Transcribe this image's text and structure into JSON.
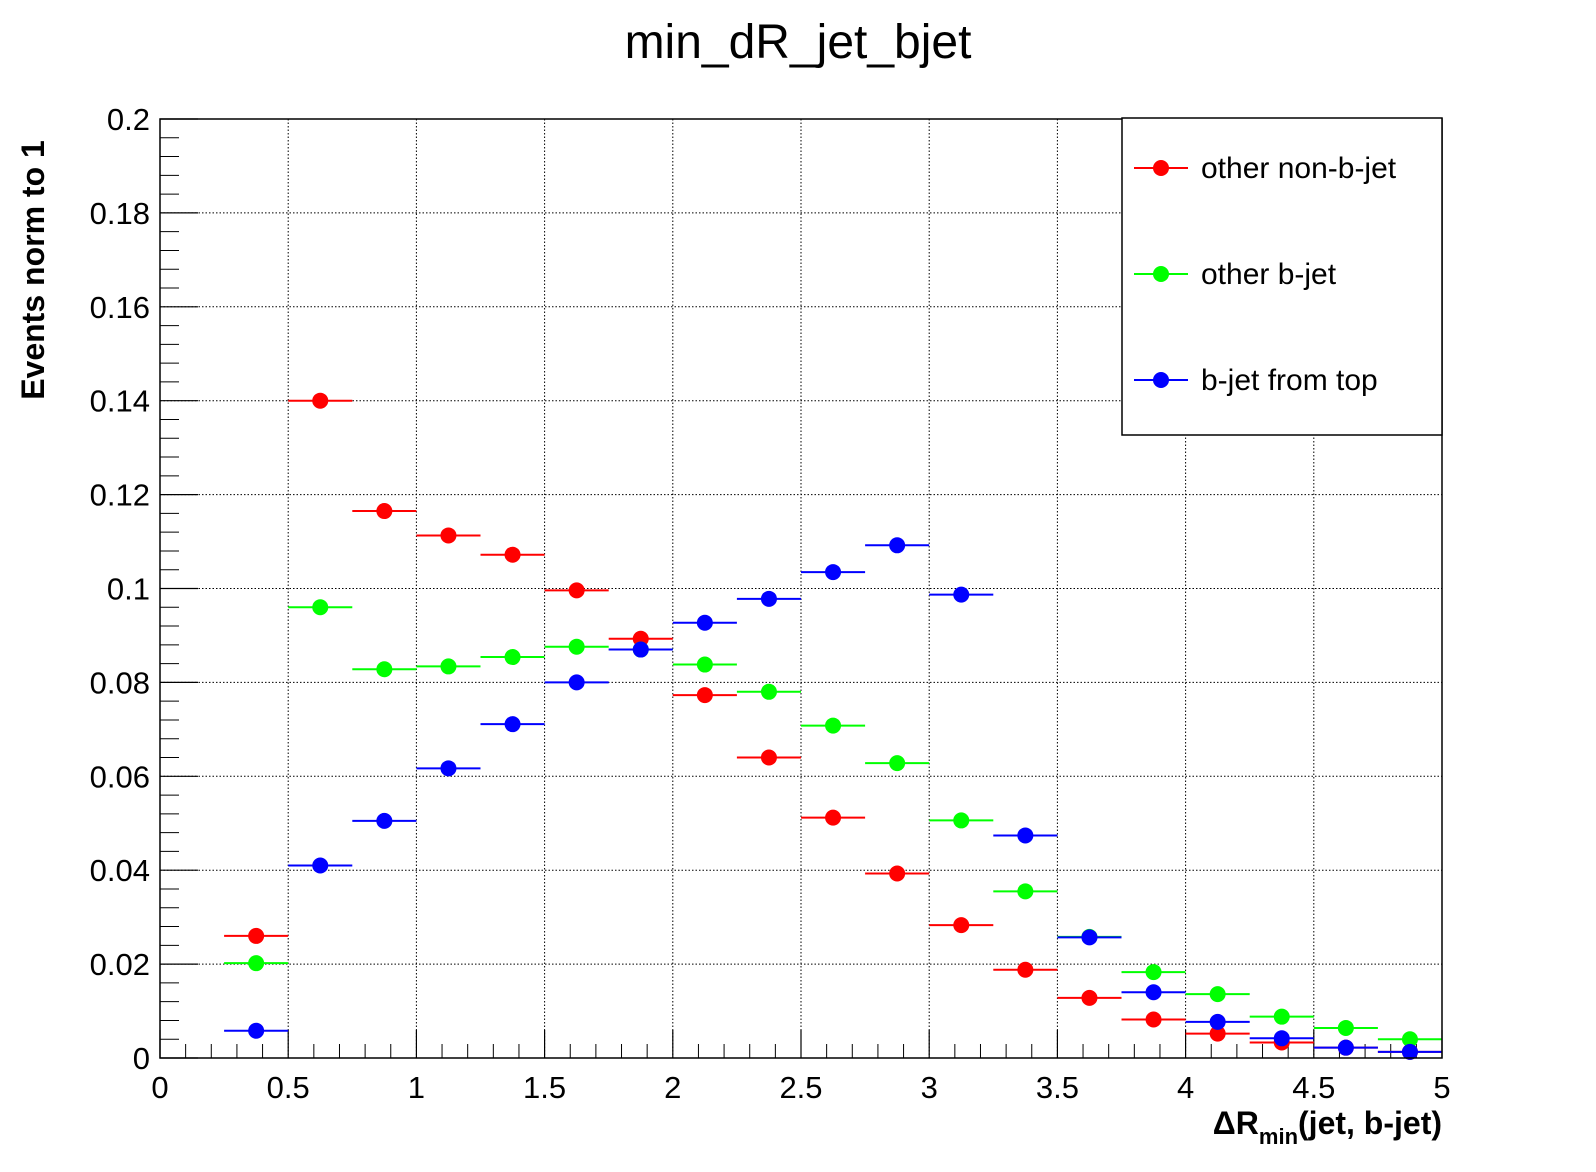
{
  "chart_data": {
    "type": "scatter",
    "title": "min_dR_jet_bjet",
    "xlabel": {
      "main": "ΔR",
      "sub": "min",
      "rest": "(jet, b-jet)"
    },
    "ylabel": "Events norm to 1",
    "xlim": [
      0,
      5
    ],
    "ylim": [
      0,
      0.2
    ],
    "x_major_ticks": [
      0,
      0.5,
      1,
      1.5,
      2,
      2.5,
      3,
      3.5,
      4,
      4.5,
      5
    ],
    "x_tick_labels": [
      "0",
      "0.5",
      "1",
      "1.5",
      "2",
      "2.5",
      "3",
      "3.5",
      "4",
      "4.5",
      "5"
    ],
    "y_major_ticks": [
      0,
      0.02,
      0.04,
      0.06,
      0.08,
      0.1,
      0.12,
      0.14,
      0.16,
      0.18,
      0.2
    ],
    "y_tick_labels": [
      "0",
      "0.02",
      "0.04",
      "0.06",
      "0.08",
      "0.1",
      "0.12",
      "0.14",
      "0.16",
      "0.18",
      "0.2"
    ],
    "grid": true,
    "legend_position": "top-right",
    "bin_width": 0.25,
    "x": [
      0.375,
      0.625,
      0.875,
      1.125,
      1.375,
      1.625,
      1.875,
      2.125,
      2.375,
      2.625,
      2.875,
      3.125,
      3.375,
      3.625,
      3.875,
      4.125,
      4.375,
      4.625,
      4.875
    ],
    "series": [
      {
        "name": "other non-b-jet",
        "color": "#ff0000",
        "values": [
          0.026,
          0.14,
          0.1165,
          0.1113,
          0.1072,
          0.0996,
          0.0893,
          0.0773,
          0.064,
          0.0512,
          0.0393,
          0.0283,
          0.0188,
          0.0128,
          0.0082,
          0.0052,
          0.0033,
          0.0022,
          0.0013
        ]
      },
      {
        "name": "other b-jet",
        "color": "#00ff00",
        "values": [
          0.0202,
          0.096,
          0.0828,
          0.0834,
          0.0854,
          0.0876,
          0.087,
          0.0838,
          0.078,
          0.0708,
          0.0628,
          0.0506,
          0.0355,
          0.0258,
          0.0183,
          0.0136,
          0.0088,
          0.0064,
          0.004
        ]
      },
      {
        "name": "b-jet from top",
        "color": "#0000ff",
        "values": [
          0.0058,
          0.041,
          0.0505,
          0.0617,
          0.0711,
          0.08,
          0.087,
          0.0927,
          0.0978,
          0.1035,
          0.1092,
          0.0987,
          0.0474,
          0.0257,
          0.014,
          0.0077,
          0.0042,
          0.0022,
          0.0013
        ]
      }
    ]
  }
}
